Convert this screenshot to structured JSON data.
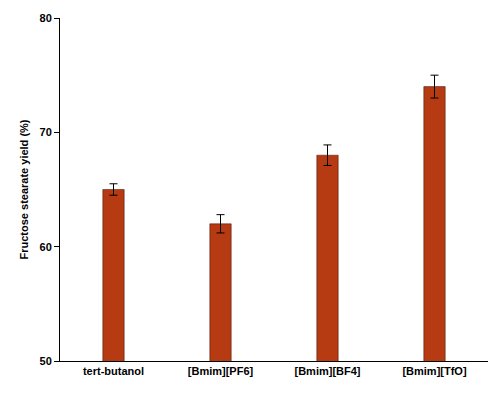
{
  "chart_data": {
    "type": "bar",
    "y_label": "Fructose stearate yield (%)",
    "categories": [
      "tert-butanol",
      "[Bmim][PF6]",
      "[Bmim][BF4]",
      "[Bmim][TfO]"
    ],
    "values": [
      65,
      62,
      68,
      74
    ],
    "errors": [
      0.5,
      0.8,
      0.9,
      1.0
    ],
    "color": "#b63a12",
    "ylim": [
      50,
      80
    ],
    "yticks": [
      50,
      60,
      70,
      80
    ],
    "grid": false
  }
}
